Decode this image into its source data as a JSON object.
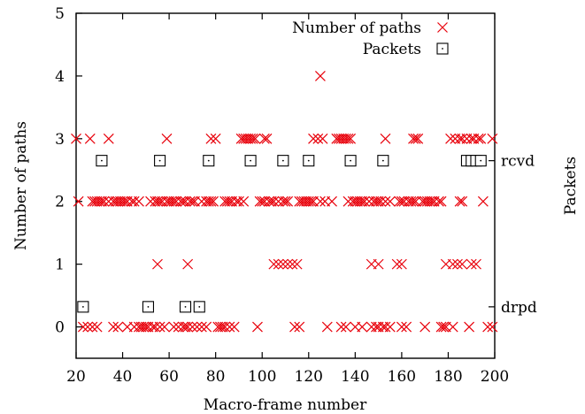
{
  "chart_data": {
    "type": "scatter",
    "xlabel": "Macro-frame number",
    "ylabel": "Number of paths",
    "y2label": "Packets",
    "xlim": [
      20,
      200
    ],
    "ylim": [
      -0.5,
      5
    ],
    "xticks": [
      20,
      40,
      60,
      80,
      100,
      120,
      140,
      160,
      180,
      200
    ],
    "yticks": [
      0,
      1,
      2,
      3,
      4,
      5
    ],
    "y2ticks": [
      {
        "label": "rcvd",
        "y": 2.65
      },
      {
        "label": "drpd",
        "y": 0.32
      }
    ],
    "legend_position": "top-right",
    "grid": false,
    "colors": {
      "paths": "#e8000b",
      "packets": "#000000",
      "axis": "#000000"
    },
    "series": [
      {
        "name": "Number of paths",
        "marker": "x",
        "points": [
          [
            20,
            3
          ],
          [
            26,
            3
          ],
          [
            34,
            3
          ],
          [
            59,
            3
          ],
          [
            78,
            3
          ],
          [
            80,
            3
          ],
          [
            91,
            3
          ],
          [
            92,
            3
          ],
          [
            93,
            3
          ],
          [
            94,
            3
          ],
          [
            95,
            3
          ],
          [
            96,
            3
          ],
          [
            97,
            3
          ],
          [
            101,
            3
          ],
          [
            102,
            3
          ],
          [
            122,
            3
          ],
          [
            124,
            3
          ],
          [
            126,
            3
          ],
          [
            132,
            3
          ],
          [
            133,
            3
          ],
          [
            134,
            3
          ],
          [
            135,
            3
          ],
          [
            136,
            3
          ],
          [
            137,
            3
          ],
          [
            138,
            3
          ],
          [
            153,
            3
          ],
          [
            165,
            3
          ],
          [
            166,
            3
          ],
          [
            167,
            3
          ],
          [
            181,
            3
          ],
          [
            183,
            3
          ],
          [
            185,
            3
          ],
          [
            186,
            3
          ],
          [
            188,
            3
          ],
          [
            190,
            3
          ],
          [
            191,
            3
          ],
          [
            193,
            3
          ],
          [
            194,
            3
          ],
          [
            199,
            3
          ],
          [
            125,
            4
          ],
          [
            21,
            2
          ],
          [
            27,
            2
          ],
          [
            28,
            2
          ],
          [
            29,
            2
          ],
          [
            30,
            2
          ],
          [
            31,
            2
          ],
          [
            32,
            2
          ],
          [
            34,
            2
          ],
          [
            36,
            2
          ],
          [
            37,
            2
          ],
          [
            38,
            2
          ],
          [
            39,
            2
          ],
          [
            40,
            2
          ],
          [
            41,
            2
          ],
          [
            42,
            2
          ],
          [
            44,
            2
          ],
          [
            45,
            2
          ],
          [
            47,
            2
          ],
          [
            52,
            2
          ],
          [
            54,
            2
          ],
          [
            55,
            2
          ],
          [
            56,
            2
          ],
          [
            57,
            2
          ],
          [
            59,
            2
          ],
          [
            60,
            2
          ],
          [
            61,
            2
          ],
          [
            62,
            2
          ],
          [
            63,
            2
          ],
          [
            65,
            2
          ],
          [
            66,
            2
          ],
          [
            67,
            2
          ],
          [
            69,
            2
          ],
          [
            70,
            2
          ],
          [
            71,
            2
          ],
          [
            74,
            2
          ],
          [
            76,
            2
          ],
          [
            77,
            2
          ],
          [
            78,
            2
          ],
          [
            79,
            2
          ],
          [
            84,
            2
          ],
          [
            85,
            2
          ],
          [
            86,
            2
          ],
          [
            87,
            2
          ],
          [
            89,
            2
          ],
          [
            90,
            2
          ],
          [
            92,
            2
          ],
          [
            99,
            2
          ],
          [
            100,
            2
          ],
          [
            101,
            2
          ],
          [
            103,
            2
          ],
          [
            104,
            2
          ],
          [
            105,
            2
          ],
          [
            107,
            2
          ],
          [
            109,
            2
          ],
          [
            110,
            2
          ],
          [
            111,
            2
          ],
          [
            116,
            2
          ],
          [
            117,
            2
          ],
          [
            118,
            2
          ],
          [
            119,
            2
          ],
          [
            120,
            2
          ],
          [
            121,
            2
          ],
          [
            122,
            2
          ],
          [
            125,
            2
          ],
          [
            127,
            2
          ],
          [
            130,
            2
          ],
          [
            137,
            2
          ],
          [
            139,
            2
          ],
          [
            140,
            2
          ],
          [
            141,
            2
          ],
          [
            142,
            2
          ],
          [
            143,
            2
          ],
          [
            144,
            2
          ],
          [
            146,
            2
          ],
          [
            148,
            2
          ],
          [
            149,
            2
          ],
          [
            150,
            2
          ],
          [
            151,
            2
          ],
          [
            153,
            2
          ],
          [
            155,
            2
          ],
          [
            159,
            2
          ],
          [
            160,
            2
          ],
          [
            161,
            2
          ],
          [
            163,
            2
          ],
          [
            164,
            2
          ],
          [
            165,
            2
          ],
          [
            166,
            2
          ],
          [
            169,
            2
          ],
          [
            170,
            2
          ],
          [
            171,
            2
          ],
          [
            172,
            2
          ],
          [
            173,
            2
          ],
          [
            174,
            2
          ],
          [
            176,
            2
          ],
          [
            177,
            2
          ],
          [
            185,
            2
          ],
          [
            186,
            2
          ],
          [
            195,
            2
          ],
          [
            55,
            1
          ],
          [
            68,
            1
          ],
          [
            105,
            1
          ],
          [
            107,
            1
          ],
          [
            109,
            1
          ],
          [
            111,
            1
          ],
          [
            113,
            1
          ],
          [
            115,
            1
          ],
          [
            147,
            1
          ],
          [
            150,
            1
          ],
          [
            158,
            1
          ],
          [
            160,
            1
          ],
          [
            179,
            1
          ],
          [
            182,
            1
          ],
          [
            184,
            1
          ],
          [
            186,
            1
          ],
          [
            190,
            1
          ],
          [
            192,
            1
          ],
          [
            23,
            0
          ],
          [
            25,
            0
          ],
          [
            27,
            0
          ],
          [
            29,
            0
          ],
          [
            36,
            0
          ],
          [
            38,
            0
          ],
          [
            42,
            0
          ],
          [
            45,
            0
          ],
          [
            47,
            0
          ],
          [
            48,
            0
          ],
          [
            49,
            0
          ],
          [
            50,
            0
          ],
          [
            51,
            0
          ],
          [
            53,
            0
          ],
          [
            54,
            0
          ],
          [
            56,
            0
          ],
          [
            58,
            0
          ],
          [
            62,
            0
          ],
          [
            64,
            0
          ],
          [
            66,
            0
          ],
          [
            67,
            0
          ],
          [
            68,
            0
          ],
          [
            70,
            0
          ],
          [
            72,
            0
          ],
          [
            74,
            0
          ],
          [
            76,
            0
          ],
          [
            81,
            0
          ],
          [
            82,
            0
          ],
          [
            83,
            0
          ],
          [
            84,
            0
          ],
          [
            86,
            0
          ],
          [
            88,
            0
          ],
          [
            98,
            0
          ],
          [
            114,
            0
          ],
          [
            116,
            0
          ],
          [
            128,
            0
          ],
          [
            134,
            0
          ],
          [
            136,
            0
          ],
          [
            140,
            0
          ],
          [
            143,
            0
          ],
          [
            147,
            0
          ],
          [
            149,
            0
          ],
          [
            150,
            0
          ],
          [
            152,
            0
          ],
          [
            153,
            0
          ],
          [
            155,
            0
          ],
          [
            160,
            0
          ],
          [
            162,
            0
          ],
          [
            170,
            0
          ],
          [
            177,
            0
          ],
          [
            178,
            0
          ],
          [
            179,
            0
          ],
          [
            182,
            0
          ],
          [
            189,
            0
          ],
          [
            197,
            0
          ],
          [
            199,
            0
          ]
        ]
      },
      {
        "name": "Packets",
        "marker": "square",
        "points": [
          [
            31,
            2.65
          ],
          [
            56,
            2.65
          ],
          [
            77,
            2.65
          ],
          [
            95,
            2.65
          ],
          [
            109,
            2.65
          ],
          [
            120,
            2.65
          ],
          [
            138,
            2.65
          ],
          [
            152,
            2.65
          ],
          [
            188,
            2.65
          ],
          [
            190,
            2.65
          ],
          [
            192,
            2.65
          ],
          [
            194,
            2.65
          ],
          [
            23,
            0.32
          ],
          [
            51,
            0.32
          ],
          [
            67,
            0.32
          ],
          [
            73,
            0.32
          ]
        ]
      }
    ]
  }
}
